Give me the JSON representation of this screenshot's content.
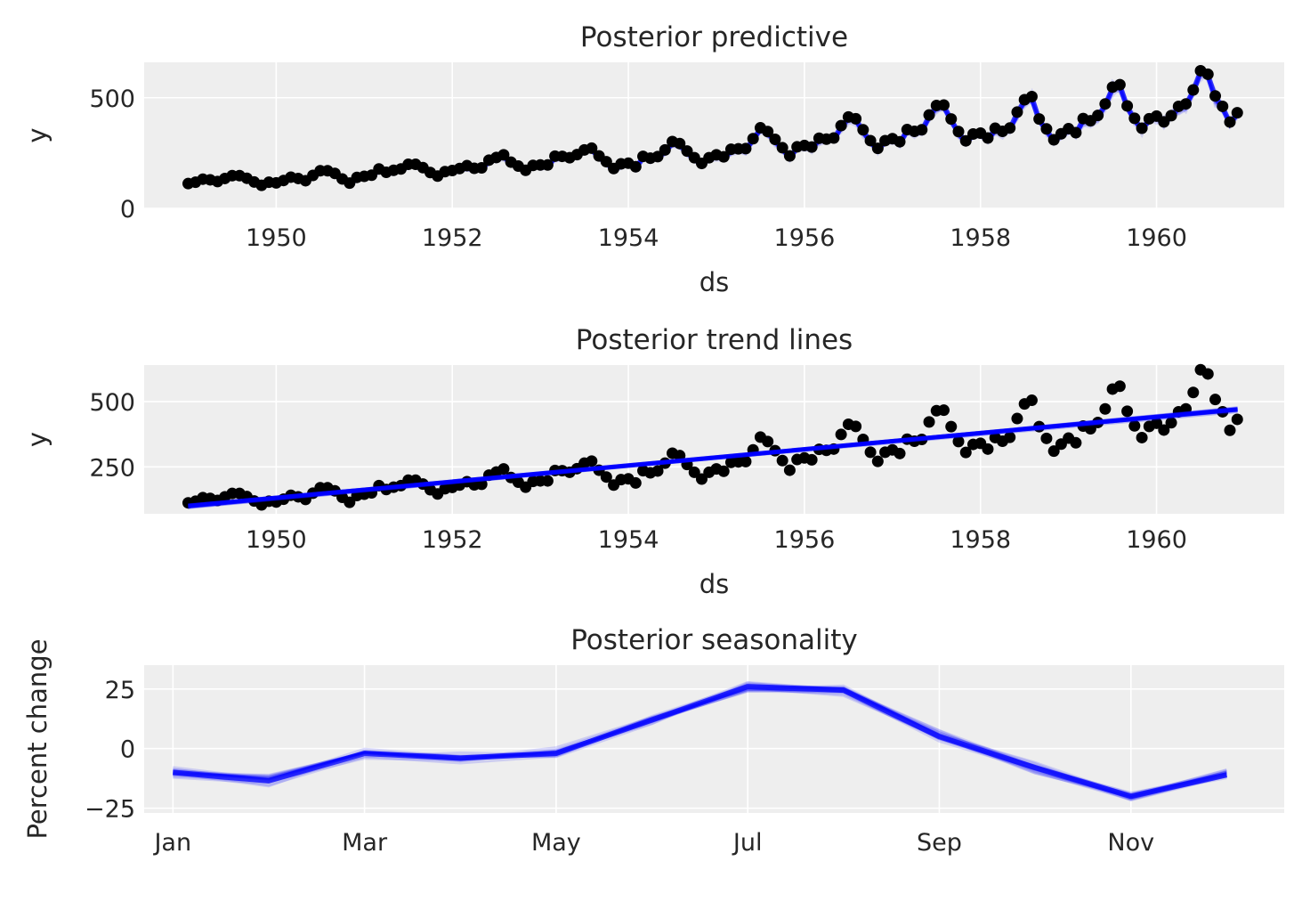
{
  "colors": {
    "panel_bg": "#eeeeee",
    "grid": "#ffffff",
    "observed": "#000000",
    "model": "#0000ff",
    "text": "#262626"
  },
  "chart_data": [
    {
      "type": "line",
      "title": "Posterior predictive",
      "xlabel": "ds",
      "ylabel": "y",
      "xlim": [
        1948.5,
        1961.45
      ],
      "ylim": [
        0,
        660
      ],
      "xticks": [
        1950,
        1952,
        1954,
        1956,
        1958,
        1960
      ],
      "xtick_labels": [
        "1950",
        "1952",
        "1954",
        "1956",
        "1958",
        "1960"
      ],
      "yticks": [
        0,
        500
      ],
      "ytick_labels": [
        "0",
        "500"
      ],
      "grid": true,
      "legend": "none",
      "series": [
        {
          "kind": "scatter",
          "color": "#000000",
          "source": "observed monthly values (dataset below)"
        },
        {
          "kind": "line-ensemble",
          "color": "#0000ff",
          "alpha": "low",
          "source": "posterior predictive draws tracking observed"
        }
      ]
    },
    {
      "type": "line",
      "title": "Posterior trend lines",
      "xlabel": "ds",
      "ylabel": "y",
      "xlim": [
        1948.5,
        1961.45
      ],
      "ylim": [
        70,
        640
      ],
      "xticks": [
        1950,
        1952,
        1954,
        1956,
        1958,
        1960
      ],
      "xtick_labels": [
        "1950",
        "1952",
        "1954",
        "1956",
        "1958",
        "1960"
      ],
      "yticks": [
        250,
        500
      ],
      "ytick_labels": [
        "250",
        "500"
      ],
      "grid": true,
      "legend": "none",
      "trend": {
        "x": [
          1949.0,
          1960.92
        ],
        "y": [
          100,
          470
        ]
      },
      "series": [
        {
          "kind": "scatter",
          "color": "#000000",
          "source": "observed monthly values (dataset below)"
        },
        {
          "kind": "line-ensemble",
          "color": "#0000ff",
          "source": "posterior trend draws"
        }
      ]
    },
    {
      "type": "line",
      "title": "Posterior seasonality",
      "xlabel": "",
      "ylabel": "Percent change",
      "xlim": [
        -0.3,
        11.6
      ],
      "ylim": [
        -27,
        35
      ],
      "xticks": [
        0,
        2,
        4,
        6,
        8,
        10
      ],
      "xtick_labels": [
        "Jan",
        "Mar",
        "May",
        "Jul",
        "Sep",
        "Nov"
      ],
      "yticks": [
        -25,
        0,
        25
      ],
      "ytick_labels": [
        "−25",
        "0",
        "25"
      ],
      "grid": true,
      "legend": "none",
      "x": [
        0,
        1,
        2,
        3,
        4,
        5,
        6,
        7,
        8,
        9,
        10,
        11
      ],
      "values": [
        -10,
        -13.5,
        -2,
        -4,
        -2,
        12,
        26,
        24.5,
        5,
        -8,
        -20,
        -11
      ]
    }
  ],
  "observed": {
    "start": "1949-01",
    "frequency": "monthly",
    "values": [
      112,
      118,
      132,
      129,
      121,
      135,
      148,
      148,
      136,
      119,
      104,
      118,
      115,
      126,
      141,
      135,
      125,
      149,
      170,
      170,
      158,
      133,
      114,
      140,
      145,
      150,
      178,
      163,
      172,
      178,
      199,
      199,
      184,
      162,
      146,
      166,
      171,
      180,
      193,
      181,
      183,
      218,
      230,
      242,
      209,
      191,
      172,
      194,
      196,
      196,
      236,
      235,
      229,
      243,
      264,
      272,
      237,
      211,
      180,
      201,
      204,
      188,
      235,
      227,
      234,
      264,
      302,
      293,
      259,
      229,
      203,
      229,
      242,
      233,
      267,
      269,
      270,
      315,
      364,
      347,
      312,
      274,
      237,
      278,
      284,
      277,
      317,
      313,
      318,
      374,
      413,
      405,
      355,
      306,
      271,
      306,
      315,
      301,
      356,
      348,
      355,
      422,
      465,
      467,
      404,
      347,
      305,
      336,
      340,
      318,
      362,
      348,
      363,
      435,
      491,
      505,
      404,
      359,
      310,
      337,
      360,
      342,
      406,
      396,
      420,
      472,
      548,
      559,
      463,
      407,
      362,
      405,
      417,
      391,
      419,
      461,
      472,
      535,
      622,
      606,
      508,
      461,
      390,
      432
    ]
  }
}
